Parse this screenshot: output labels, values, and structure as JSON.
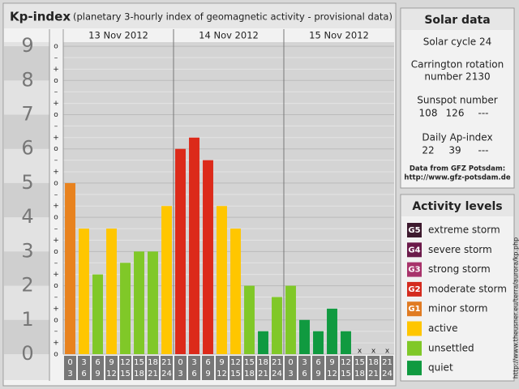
{
  "chart_data": {
    "type": "bar",
    "title": "Kp-index",
    "subtitle": "(planetary 3-hourly index of geomagnetic activity - provisional data)",
    "days": [
      "13 Nov 2012",
      "14 Nov 2012",
      "15 Nov 2012"
    ],
    "categories": [
      [
        "0",
        "3"
      ],
      [
        "3",
        "6"
      ],
      [
        "6",
        "9"
      ],
      [
        "9",
        "12"
      ],
      [
        "12",
        "15"
      ],
      [
        "15",
        "18"
      ],
      [
        "18",
        "21"
      ],
      [
        "21",
        "24"
      ],
      [
        "0",
        "3"
      ],
      [
        "3",
        "6"
      ],
      [
        "6",
        "9"
      ],
      [
        "9",
        "12"
      ],
      [
        "12",
        "15"
      ],
      [
        "15",
        "18"
      ],
      [
        "18",
        "21"
      ],
      [
        "21",
        "24"
      ],
      [
        "0",
        "3"
      ],
      [
        "3",
        "6"
      ],
      [
        "6",
        "9"
      ],
      [
        "9",
        "12"
      ],
      [
        "12",
        "15"
      ],
      [
        "15",
        "18"
      ],
      [
        "18",
        "21"
      ],
      [
        "21",
        "24"
      ]
    ],
    "values": [
      5,
      3.67,
      2.33,
      3.67,
      2.67,
      3,
      3,
      4.33,
      6,
      6.33,
      5.67,
      4.33,
      3.67,
      2,
      0.67,
      1.67,
      2,
      1,
      0.67,
      1.33,
      0.67,
      null,
      null,
      null
    ],
    "colors": [
      "#e8821e",
      "#ffc600",
      "#80c828",
      "#ffc600",
      "#80c828",
      "#80c828",
      "#80c828",
      "#ffc600",
      "#dc2a1a",
      "#dc2a1a",
      "#dc2a1a",
      "#ffc600",
      "#ffc600",
      "#80c828",
      "#109a40",
      "#80c828",
      "#80c828",
      "#109a40",
      "#109a40",
      "#109a40",
      "#109a40",
      "#109a40",
      "#109a40",
      "#109a40"
    ],
    "missing_label": "x",
    "ylim": [
      0,
      9.12
    ],
    "yticks": [
      0,
      1,
      2,
      3,
      4,
      5,
      6,
      7,
      8,
      9
    ],
    "minor_ticks": [
      {
        "value": 0,
        "label": "o"
      },
      {
        "value": 0.33,
        "label": "+"
      },
      {
        "value": 0.67,
        "label": "–"
      },
      {
        "value": 1,
        "label": "o"
      },
      {
        "value": 1.33,
        "label": "+"
      },
      {
        "value": 1.67,
        "label": "–"
      },
      {
        "value": 2,
        "label": "o"
      },
      {
        "value": 2.33,
        "label": "+"
      },
      {
        "value": 2.67,
        "label": "–"
      },
      {
        "value": 3,
        "label": "o"
      },
      {
        "value": 3.33,
        "label": "+"
      },
      {
        "value": 3.67,
        "label": "–"
      },
      {
        "value": 4,
        "label": "o"
      },
      {
        "value": 4.33,
        "label": "+"
      },
      {
        "value": 4.67,
        "label": "–"
      },
      {
        "value": 5,
        "label": "o"
      },
      {
        "value": 5.33,
        "label": "+"
      },
      {
        "value": 5.67,
        "label": "–"
      },
      {
        "value": 6,
        "label": "o"
      },
      {
        "value": 6.33,
        "label": "+"
      },
      {
        "value": 6.67,
        "label": "–"
      },
      {
        "value": 7,
        "label": "o"
      },
      {
        "value": 7.33,
        "label": "+"
      },
      {
        "value": 7.67,
        "label": "–"
      },
      {
        "value": 8,
        "label": "o"
      },
      {
        "value": 8.33,
        "label": "+"
      },
      {
        "value": 8.67,
        "label": "–"
      },
      {
        "value": 9,
        "label": "o"
      }
    ],
    "grid": true
  },
  "solar": {
    "title": "Solar data",
    "cycle": "Solar cycle 24",
    "carrington1": "Carrington rotation",
    "carrington2": "number 2130",
    "sunspot_title": "Sunspot number",
    "sunspot": [
      "108",
      "126",
      "---"
    ],
    "ap_title": "Daily Ap-index",
    "ap": [
      "22",
      "39",
      "---"
    ],
    "source1": "Data from GFZ Potsdam:",
    "source2": "http://www.gfz-potsdam.de"
  },
  "activity": {
    "title": "Activity levels",
    "items": [
      {
        "badge": "G5",
        "label": "extreme storm",
        "color": "#3d1a2e"
      },
      {
        "badge": "G4",
        "label": "severe storm",
        "color": "#6b1a4a"
      },
      {
        "badge": "G3",
        "label": "strong storm",
        "color": "#a8336b"
      },
      {
        "badge": "G2",
        "label": "moderate storm",
        "color": "#d42b1e"
      },
      {
        "badge": "G1",
        "label": "minor storm",
        "color": "#e07b22"
      },
      {
        "label": "active",
        "color": "#ffc600"
      },
      {
        "label": "unsettled",
        "color": "#80c828"
      },
      {
        "label": "quiet",
        "color": "#109a40"
      }
    ]
  },
  "credit": "http://www.theusner.eu/terra/aurora/kp.php"
}
